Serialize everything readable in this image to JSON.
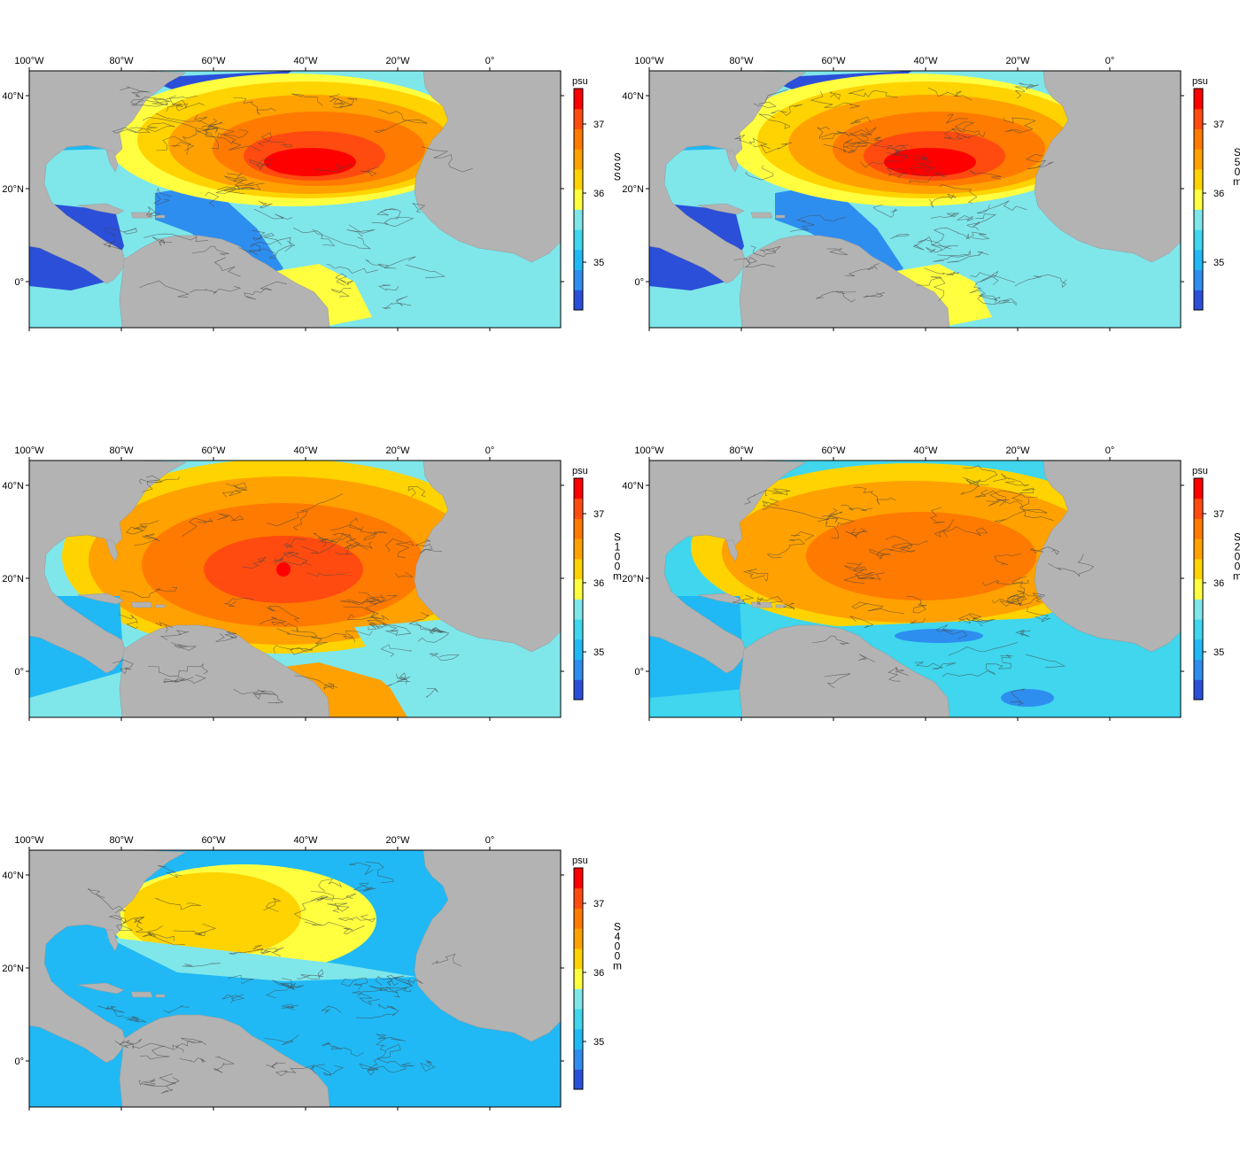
{
  "colors": {
    "land": "#b3b3b3",
    "shelf": "#6e6e6e",
    "track": "#444444",
    "frame": "#000000",
    "scale": [
      "#2b4fd9",
      "#2e8ef0",
      "#20b9f5",
      "#3fd6ee",
      "#7fe6ea",
      "#ffff40",
      "#ffd300",
      "#ffa100",
      "#ff7a00",
      "#ff4b10",
      "#ff0000"
    ]
  },
  "axes": {
    "lon_ticks": [
      "100°W",
      "80°W",
      "60°W",
      "40°W",
      "20°W",
      "0°"
    ],
    "lat_ticks": [
      "40°N",
      "20°N",
      "0°"
    ]
  },
  "colorbar": {
    "unit": "psu",
    "ticks": [
      "37",
      "36",
      "35"
    ]
  },
  "panels": [
    {
      "id": "sss",
      "title": "SSS",
      "max_level": "very-high"
    },
    {
      "id": "s50",
      "title": "S 50m",
      "max_level": "very-high"
    },
    {
      "id": "s100",
      "title": "S 100m",
      "max_level": "high"
    },
    {
      "id": "s200",
      "title": "S 200m",
      "max_level": "medium"
    },
    {
      "id": "s400",
      "title": "S 400m",
      "max_level": "low"
    }
  ]
}
